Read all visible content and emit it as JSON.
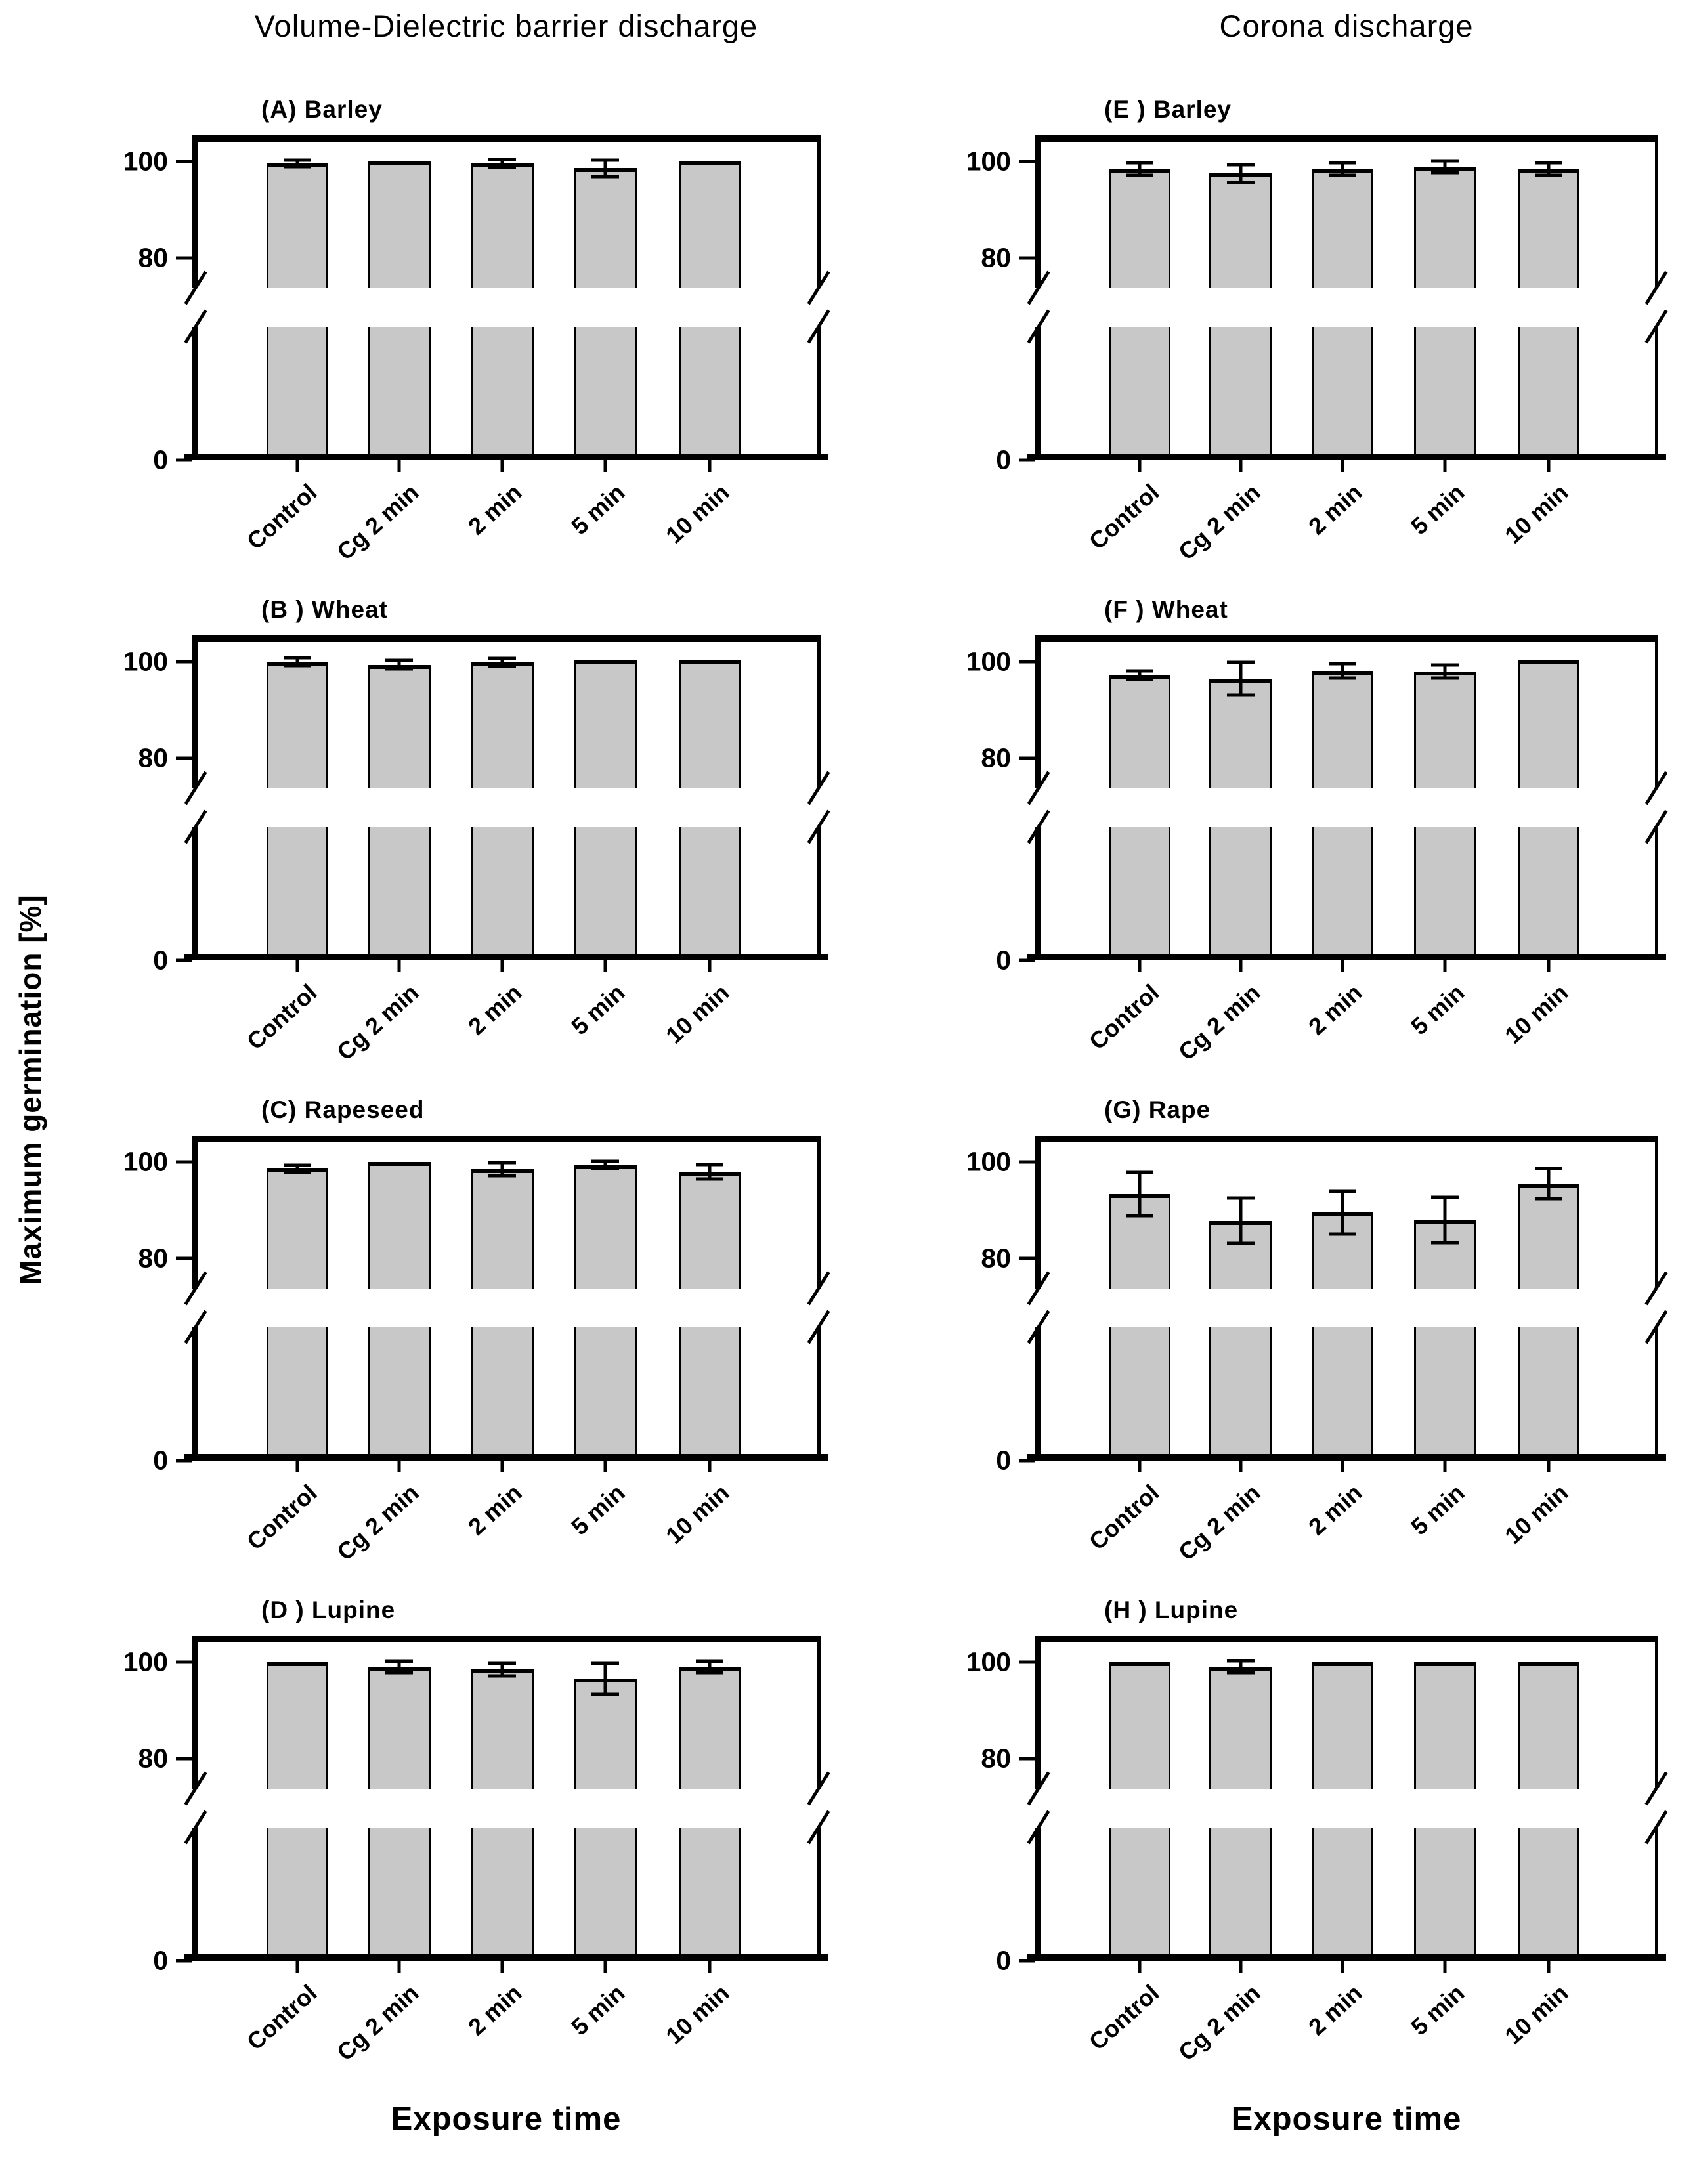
{
  "figure_titles": {
    "left_column": "Volume-Dielectric barrier discharge",
    "right_column": "Corona discharge",
    "y_axis_label": "Maximum germination [%]",
    "x_axis_label_left": "Exposure time",
    "x_axis_label_right": "Exposure time"
  },
  "axis": {
    "y_ticks": [
      100,
      80,
      0
    ],
    "categories": [
      "Control",
      "Cg 2 min",
      "2 min",
      "5 min",
      "10 min"
    ]
  },
  "colors": {
    "bar_fill": "#c8c8c8",
    "line": "#000000",
    "background": "#ffffff"
  },
  "chart_data": [
    {
      "type": "bar",
      "panel_label": "(A) Barley",
      "column": "Volume-Dielectric barrier discharge",
      "categories": [
        "Control",
        "Cg 2 min",
        "2 min",
        "5 min",
        "10 min"
      ],
      "values": [
        99.6,
        100.2,
        99.6,
        98.6,
        100.2
      ],
      "errors": [
        0.7,
        0,
        0.8,
        1.7,
        0
      ],
      "ylabel": "Maximum germination [%]",
      "xlabel": "Exposure time",
      "yticks": [
        100,
        80,
        0
      ],
      "ylim": [
        0,
        105
      ],
      "broken_y_axis": true,
      "grid": false,
      "legend": "none"
    },
    {
      "type": "bar",
      "panel_label": "(B ) Wheat",
      "column": "Volume-Dielectric barrier discharge",
      "categories": [
        "Control",
        "Cg 2 min",
        "2 min",
        "5 min",
        "10 min"
      ],
      "values": [
        100.0,
        99.4,
        99.9,
        100.3,
        100.3
      ],
      "errors": [
        0.8,
        0.9,
        0.8,
        0,
        0
      ],
      "ylabel": "Maximum germination [%]",
      "xlabel": "Exposure time",
      "yticks": [
        100,
        80,
        0
      ],
      "ylim": [
        0,
        105
      ],
      "broken_y_axis": true,
      "grid": false,
      "legend": "none"
    },
    {
      "type": "bar",
      "panel_label": "(C) Rapeseed",
      "column": "Volume-Dielectric barrier discharge",
      "categories": [
        "Control",
        "Cg 2 min",
        "2 min",
        "5 min",
        "10 min"
      ],
      "values": [
        98.6,
        100.0,
        98.5,
        99.4,
        98.0
      ],
      "errors": [
        0.8,
        0,
        1.4,
        0.8,
        1.5
      ],
      "ylabel": "Maximum germination [%]",
      "xlabel": "Exposure time",
      "yticks": [
        100,
        80,
        0
      ],
      "ylim": [
        0,
        105
      ],
      "broken_y_axis": true,
      "grid": false,
      "legend": "none"
    },
    {
      "type": "bar",
      "panel_label": "(D ) Lupine",
      "column": "Volume-Dielectric barrier discharge",
      "categories": [
        "Control",
        "Cg 2 min",
        "2 min",
        "5 min",
        "10 min"
      ],
      "values": [
        100.0,
        99.0,
        98.5,
        96.6,
        99.0
      ],
      "errors": [
        0,
        1.1,
        1.3,
        3.2,
        1.1
      ],
      "ylabel": "Maximum germination [%]",
      "xlabel": "Exposure time",
      "yticks": [
        100,
        80,
        0
      ],
      "ylim": [
        0,
        105
      ],
      "broken_y_axis": true,
      "grid": false,
      "legend": "none"
    },
    {
      "type": "bar",
      "panel_label": "(E ) Barley",
      "column": "Corona discharge",
      "categories": [
        "Control",
        "Cg 2 min",
        "2 min",
        "5 min",
        "10 min"
      ],
      "values": [
        98.5,
        97.5,
        98.4,
        98.9,
        98.4
      ],
      "errors": [
        1.3,
        1.8,
        1.3,
        1.2,
        1.3
      ],
      "ylabel": "Maximum germination [%]",
      "xlabel": "Exposure time",
      "yticks": [
        100,
        80,
        0
      ],
      "ylim": [
        0,
        105
      ],
      "broken_y_axis": true,
      "grid": false,
      "legend": "none"
    },
    {
      "type": "bar",
      "panel_label": "(F ) Wheat",
      "column": "Corona discharge",
      "categories": [
        "Control",
        "Cg 2 min",
        "2 min",
        "5 min",
        "10 min"
      ],
      "values": [
        97.2,
        96.5,
        98.1,
        98.0,
        100.3
      ],
      "errors": [
        0.9,
        3.4,
        1.5,
        1.4,
        0
      ],
      "ylabel": "Maximum germination [%]",
      "xlabel": "Exposure time",
      "yticks": [
        100,
        80,
        0
      ],
      "ylim": [
        0,
        105
      ],
      "broken_y_axis": true,
      "grid": false,
      "legend": "none"
    },
    {
      "type": "bar",
      "panel_label": "(G) Rape",
      "column": "Corona discharge",
      "categories": [
        "Control",
        "Cg 2 min",
        "2 min",
        "5 min",
        "10 min"
      ],
      "values": [
        93.3,
        87.8,
        89.5,
        88.0,
        95.5
      ],
      "errors": [
        4.5,
        4.7,
        4.4,
        4.7,
        3.1
      ],
      "ylabel": "Maximum germination [%]",
      "xlabel": "Exposure time",
      "yticks": [
        100,
        80,
        0
      ],
      "ylim": [
        0,
        105
      ],
      "broken_y_axis": true,
      "grid": false,
      "legend": "none"
    },
    {
      "type": "bar",
      "panel_label": "(H ) Lupine",
      "column": "Corona discharge",
      "categories": [
        "Control",
        "Cg 2 min",
        "2 min",
        "5 min",
        "10 min"
      ],
      "values": [
        100.0,
        99.1,
        100.0,
        100.0,
        100.0
      ],
      "errors": [
        0,
        1.2,
        0,
        0,
        0
      ],
      "ylabel": "Maximum germination [%]",
      "xlabel": "Exposure time",
      "yticks": [
        100,
        80,
        0
      ],
      "ylim": [
        0,
        105
      ],
      "broken_y_axis": true,
      "grid": false,
      "legend": "none"
    }
  ]
}
